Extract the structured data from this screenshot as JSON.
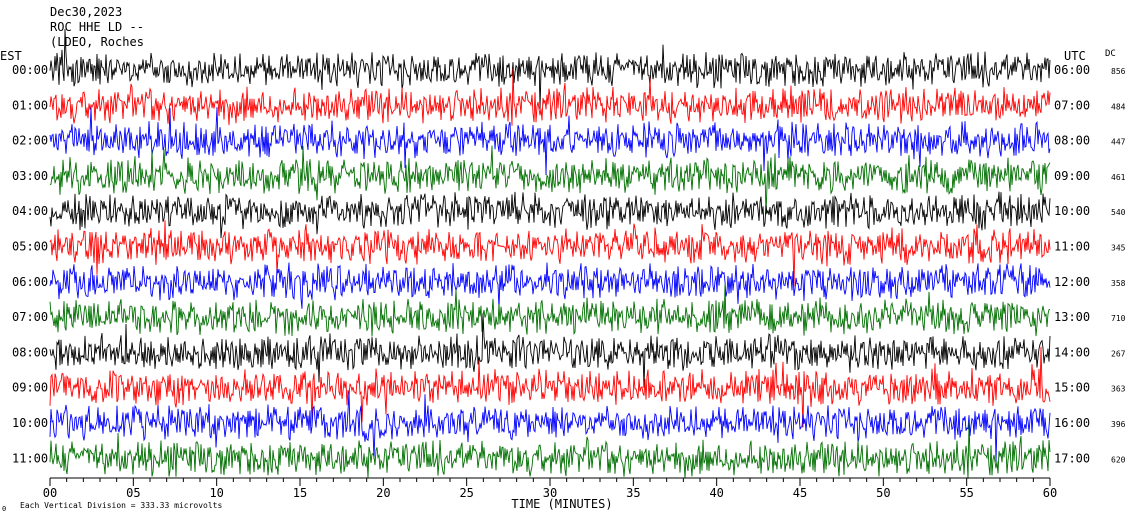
{
  "header": {
    "date": "Dec30,2023",
    "station": "ROC HHE LD --",
    "network": "(LDEO, Roches"
  },
  "left_axis_label": "EST",
  "right_axis_label": "UTC",
  "dc_label": "DC",
  "footer": {
    "scale_note": "Each Vertical Division = 333.33 microvolts",
    "marker": "0"
  },
  "colors": {
    "trace_cycle": [
      "#000000",
      "#ff0000",
      "#0000ff",
      "#007000"
    ]
  },
  "chart_data": {
    "type": "line",
    "title": "",
    "xlabel": "TIME (MINUTES)",
    "ylabel": "",
    "xlim": [
      0,
      60
    ],
    "x_ticks": [
      "00",
      "05",
      "10",
      "15",
      "20",
      "25",
      "30",
      "35",
      "40",
      "45",
      "50",
      "55",
      "60"
    ],
    "rows": [
      {
        "est": "00:00",
        "utc": "06:00",
        "dc": "856",
        "color": "#000000"
      },
      {
        "est": "01:00",
        "utc": "07:00",
        "dc": "484",
        "color": "#ff0000"
      },
      {
        "est": "02:00",
        "utc": "08:00",
        "dc": "447",
        "color": "#0000ff"
      },
      {
        "est": "03:00",
        "utc": "09:00",
        "dc": "461",
        "color": "#007000"
      },
      {
        "est": "04:00",
        "utc": "10:00",
        "dc": "540",
        "color": "#000000"
      },
      {
        "est": "05:00",
        "utc": "11:00",
        "dc": "345",
        "color": "#ff0000"
      },
      {
        "est": "06:00",
        "utc": "12:00",
        "dc": "358",
        "color": "#0000ff"
      },
      {
        "est": "07:00",
        "utc": "13:00",
        "dc": "710",
        "color": "#007000"
      },
      {
        "est": "08:00",
        "utc": "14:00",
        "dc": "267",
        "color": "#000000"
      },
      {
        "est": "09:00",
        "utc": "15:00",
        "dc": "363",
        "color": "#ff0000"
      },
      {
        "est": "10:00",
        "utc": "16:00",
        "dc": "396",
        "color": "#0000ff"
      },
      {
        "est": "11:00",
        "utc": "17:00",
        "dc": "620",
        "color": "#007000"
      }
    ]
  }
}
